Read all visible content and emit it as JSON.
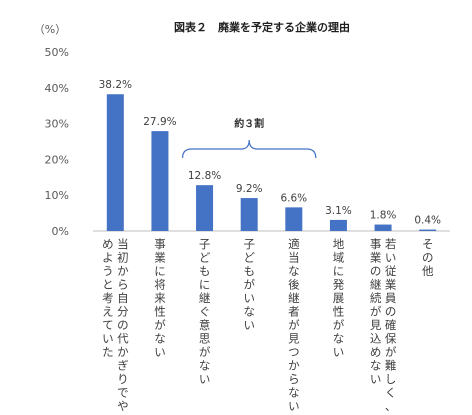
{
  "chart_data": {
    "type": "bar",
    "title": "図表２　廃業を予定する企業の理由",
    "unit_label": "（%）",
    "ylim": [
      0,
      50
    ],
    "yticks": [
      "0%",
      "10%",
      "20%",
      "30%",
      "40%",
      "50%"
    ],
    "grid": false,
    "bar_color": "#4472C4",
    "categories": [
      [
        "当初から自分の代かぎりでや",
        "めようと考えていた"
      ],
      [
        "事業に将来性がない"
      ],
      [
        "子どもに継ぐ意思がない"
      ],
      [
        "子どもがいない"
      ],
      [
        "適当な後継者が見つからない"
      ],
      [
        "地域に発展性がない"
      ],
      [
        "若い従業員の確保が難しく、",
        "事業の継続が見込めない"
      ],
      [
        "その他"
      ]
    ],
    "values": [
      38.2,
      27.9,
      12.8,
      9.2,
      6.6,
      3.1,
      1.8,
      0.4
    ],
    "value_labels": [
      "38.2%",
      "27.9%",
      "12.8%",
      "9.2%",
      "6.6%",
      "3.1%",
      "1.8%",
      "0.4%"
    ],
    "annotation": {
      "text": "約３割",
      "from_category": 2,
      "to_category": 4
    }
  }
}
